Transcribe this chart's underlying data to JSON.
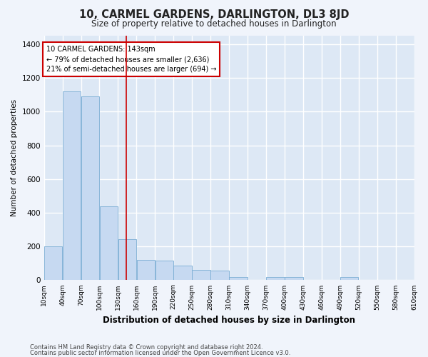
{
  "title": "10, CARMEL GARDENS, DARLINGTON, DL3 8JD",
  "subtitle": "Size of property relative to detached houses in Darlington",
  "xlabel": "Distribution of detached houses by size in Darlington",
  "ylabel": "Number of detached properties",
  "bar_color": "#c6d9f1",
  "bar_edge_color": "#7aadd4",
  "background_color": "#dde8f5",
  "grid_color": "#ffffff",
  "annotation_box_color": "#cc0000",
  "annotation_line_color": "#cc0000",
  "property_line_x": 143,
  "annotation_text_line1": "10 CARMEL GARDENS: 143sqm",
  "annotation_text_line2": "← 79% of detached houses are smaller (2,636)",
  "annotation_text_line3": "21% of semi-detached houses are larger (694) →",
  "footer_line1": "Contains HM Land Registry data © Crown copyright and database right 2024.",
  "footer_line2": "Contains public sector information licensed under the Open Government Licence v3.0.",
  "bins": [
    10,
    40,
    70,
    100,
    130,
    160,
    190,
    220,
    250,
    280,
    310,
    340,
    370,
    400,
    430,
    460,
    490,
    520,
    550,
    580,
    610
  ],
  "bar_heights": [
    200,
    1120,
    1090,
    440,
    245,
    120,
    115,
    85,
    60,
    55,
    20,
    0,
    18,
    18,
    0,
    0,
    20,
    0,
    0,
    0
  ],
  "ylim": [
    0,
    1450
  ],
  "yticks": [
    0,
    200,
    400,
    600,
    800,
    1000,
    1200,
    1400
  ],
  "tick_labels": [
    "10sqm",
    "40sqm",
    "70sqm",
    "100sqm",
    "130sqm",
    "160sqm",
    "190sqm",
    "220sqm",
    "250sqm",
    "280sqm",
    "310sqm",
    "340sqm",
    "370sqm",
    "400sqm",
    "430sqm",
    "460sqm",
    "490sqm",
    "520sqm",
    "550sqm",
    "580sqm",
    "610sqm"
  ]
}
